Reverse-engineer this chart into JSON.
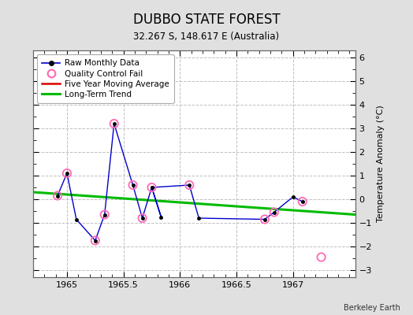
{
  "title": "DUBBO STATE FOREST",
  "subtitle": "32.267 S, 148.617 E (Australia)",
  "ylabel_right": "Temperature Anomaly (°C)",
  "credit": "Berkeley Earth",
  "xlim": [
    1964.7,
    1967.55
  ],
  "ylim": [
    -3.3,
    6.3
  ],
  "yticks": [
    -3,
    -2,
    -1,
    0,
    1,
    2,
    3,
    4,
    5,
    6
  ],
  "xticks": [
    1965,
    1965.5,
    1966,
    1966.5,
    1967
  ],
  "raw_x": [
    1964.917,
    1965.0,
    1965.083,
    1965.25,
    1965.333,
    1965.417,
    1965.583,
    1965.667,
    1965.75,
    1965.833,
    1965.75,
    1966.083,
    1966.167,
    1966.75,
    1966.833,
    1967.0,
    1967.083
  ],
  "raw_y": [
    0.15,
    1.1,
    -0.85,
    -1.75,
    -0.65,
    3.2,
    0.6,
    -0.8,
    0.5,
    -0.75,
    0.5,
    0.6,
    -0.8,
    -0.85,
    -0.55,
    0.1,
    -0.1
  ],
  "qc_fail_x": [
    1964.917,
    1965.0,
    1965.25,
    1965.333,
    1965.417,
    1965.583,
    1965.667,
    1965.75,
    1966.083,
    1966.75,
    1966.833,
    1967.083,
    1967.25
  ],
  "qc_fail_y": [
    0.15,
    1.1,
    -1.75,
    -0.65,
    3.2,
    0.6,
    -0.8,
    0.5,
    0.6,
    -0.85,
    -0.55,
    -0.1,
    -2.45
  ],
  "trend_x": [
    1964.7,
    1967.55
  ],
  "trend_y": [
    0.3,
    -0.65
  ],
  "background_color": "#e0e0e0",
  "plot_background": "#ffffff",
  "raw_line_color": "#0000cc",
  "raw_marker_color": "#000000",
  "qc_marker_color": "#ff69b4",
  "trend_color": "#00bb00",
  "moving_avg_color": "#dd0000",
  "grid_color": "#c0c0c0",
  "grid_linestyle": "--"
}
